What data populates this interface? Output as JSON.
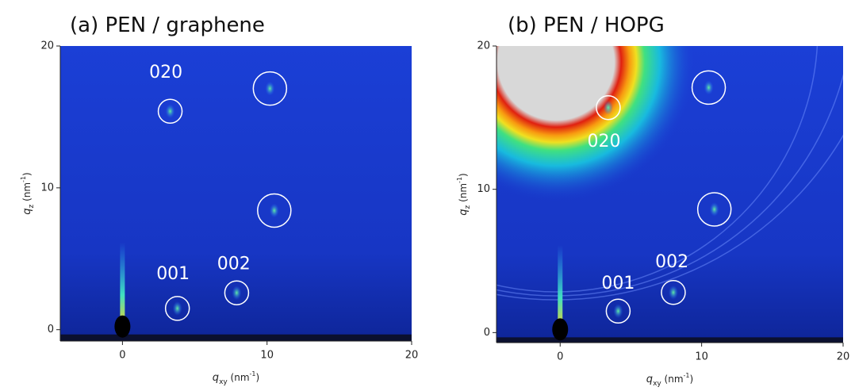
{
  "chart_data": [
    {
      "type": "image",
      "title": "(a) PEN / graphene",
      "xlabel": [
        "q",
        "xy",
        " (nm",
        "-1",
        ")"
      ],
      "ylabel": [
        "q",
        "z",
        " (nm",
        "-1",
        ")"
      ],
      "xlim": [
        -4.3,
        20
      ],
      "ylim": [
        -0.8,
        20
      ],
      "xticks": [
        0,
        10,
        20
      ],
      "yticks": [
        0,
        10,
        20
      ],
      "peaks": [
        {
          "x": 3.3,
          "y": 15.4
        },
        {
          "x": 10.2,
          "y": 17.0
        },
        {
          "x": 10.5,
          "y": 8.4
        },
        {
          "x": 3.8,
          "y": 1.5
        },
        {
          "x": 7.9,
          "y": 2.6
        }
      ],
      "annotations": [
        {
          "text": "020",
          "x": 3.0,
          "y": 18.1
        },
        {
          "text": "001",
          "x": 3.5,
          "y": 3.9
        },
        {
          "text": "002",
          "x": 7.7,
          "y": 4.6
        }
      ]
    },
    {
      "type": "image",
      "title": "(b) PEN / HOPG",
      "xlabel": [
        "q",
        "xy",
        " (nm",
        "-1",
        ")"
      ],
      "ylabel": [
        "q",
        "z",
        " (nm",
        "-1",
        ")"
      ],
      "xlim": [
        -4.5,
        20
      ],
      "ylim": [
        -0.7,
        20
      ],
      "xticks": [
        0,
        10,
        20
      ],
      "yticks": [
        0,
        10,
        20
      ],
      "peaks": [
        {
          "x": 3.4,
          "y": 15.7
        },
        {
          "x": 10.5,
          "y": 17.1
        },
        {
          "x": 10.9,
          "y": 8.6
        },
        {
          "x": 4.1,
          "y": 1.5
        },
        {
          "x": 8.0,
          "y": 2.8
        }
      ],
      "annotations": [
        {
          "text": "020",
          "x": 3.1,
          "y": 13.3
        },
        {
          "text": "001",
          "x": 4.1,
          "y": 3.4
        },
        {
          "text": "002",
          "x": 7.9,
          "y": 4.9
        }
      ]
    }
  ]
}
